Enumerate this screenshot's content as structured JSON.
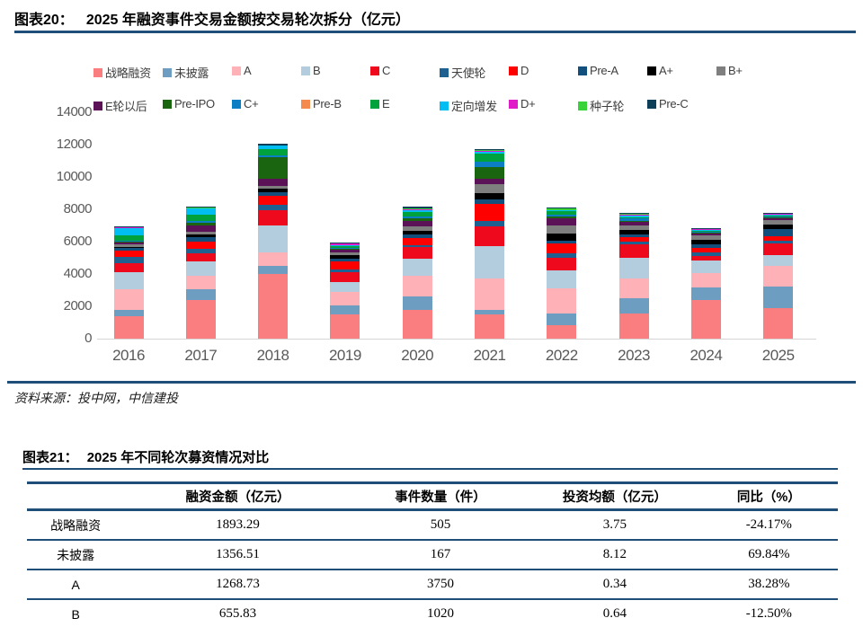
{
  "page": {
    "figure20_label": "图表20：",
    "figure20_title": "2025 年融资事件交易金额按交易轮次拆分（亿元）",
    "source": "资料来源：投中网，中信建投",
    "figure21_label": "图表21：",
    "figure21_title": "2025 年不同轮次募资情况对比"
  },
  "chart_data": {
    "type": "bar",
    "stacked": true,
    "title": "2025 年融资事件交易金额按交易轮次拆分（亿元）",
    "ylabel": "亿元",
    "categories": [
      "2016",
      "2017",
      "2018",
      "2019",
      "2020",
      "2021",
      "2022",
      "2023",
      "2024",
      "2025"
    ],
    "ylim": [
      0,
      14000
    ],
    "ytick_step": 2000,
    "grid": false,
    "legend_position": "top",
    "legend_rows": [
      10,
      9
    ],
    "axis_color": "#D6D6D6",
    "tick_color": "#595959",
    "series": [
      {
        "name": "战略融资",
        "color": "#FA7D80",
        "values": [
          1390,
          2400,
          4000,
          1520,
          1750,
          1520,
          835,
          1560,
          2400,
          1893
        ]
      },
      {
        "name": "未披露",
        "color": "#6D9DC0",
        "values": [
          390,
          630,
          480,
          540,
          835,
          280,
          720,
          945,
          740,
          1357
        ]
      },
      {
        "name": "A",
        "color": "#FFB1B8",
        "values": [
          1250,
          870,
          850,
          850,
          1300,
          1950,
          1550,
          1200,
          930,
          1269
        ]
      },
      {
        "name": "B",
        "color": "#B3CCDE",
        "values": [
          1060,
          870,
          1650,
          610,
          1050,
          2000,
          1120,
          1300,
          740,
          656
        ]
      },
      {
        "name": "C",
        "color": "#EE0A1C",
        "values": [
          575,
          500,
          960,
          600,
          740,
          1200,
          780,
          815,
          315,
          700
        ]
      },
      {
        "name": "天使轮",
        "color": "#1E6191",
        "values": [
          410,
          300,
          315,
          185,
          130,
          350,
          280,
          185,
          185,
          185
        ]
      },
      {
        "name": "D",
        "color": "#FF0000",
        "values": [
          350,
          460,
          575,
          480,
          430,
          1040,
          600,
          280,
          280,
          295
        ]
      },
      {
        "name": "Pre-A",
        "color": "#134F7D",
        "values": [
          170,
          240,
          220,
          150,
          220,
          280,
          150,
          150,
          220,
          400
        ]
      },
      {
        "name": "A+",
        "color": "#000000",
        "values": [
          90,
          185,
          240,
          220,
          200,
          400,
          480,
          280,
          280,
          280
        ]
      },
      {
        "name": "B+",
        "color": "#7F7F7F",
        "values": [
          170,
          185,
          150,
          160,
          280,
          520,
          500,
          280,
          280,
          280
        ]
      },
      {
        "name": "E轮以后",
        "color": "#5C1257",
        "values": [
          80,
          370,
          445,
          170,
          350,
          350,
          420,
          220,
          130,
          110
        ]
      },
      {
        "name": "Pre-IPO",
        "color": "#1A650F",
        "values": [
          60,
          185,
          1350,
          80,
          150,
          700,
          150,
          60,
          60,
          60
        ]
      },
      {
        "name": "C+",
        "color": "#0C7EC3",
        "values": [
          40,
          60,
          90,
          60,
          100,
          330,
          100,
          150,
          60,
          60
        ]
      },
      {
        "name": "Pre-B",
        "color": "#F58A50",
        "values": [
          20,
          20,
          20,
          0,
          30,
          30,
          0,
          0,
          0,
          0
        ]
      },
      {
        "name": "E",
        "color": "#00A23E",
        "values": [
          330,
          380,
          400,
          100,
          250,
          500,
          200,
          60,
          60,
          80
        ]
      },
      {
        "name": "定向增发",
        "color": "#00BEF2",
        "values": [
          470,
          400,
          185,
          60,
          150,
          90,
          60,
          120,
          60,
          60
        ]
      },
      {
        "name": "D+",
        "color": "#E01AC8",
        "values": [
          20,
          20,
          20,
          90,
          50,
          90,
          30,
          40,
          20,
          20
        ]
      },
      {
        "name": "种子轮",
        "color": "#37D337",
        "values": [
          20,
          30,
          20,
          30,
          50,
          30,
          60,
          60,
          40,
          40
        ]
      },
      {
        "name": "Pre-C",
        "color": "#0E3F58",
        "values": [
          50,
          60,
          90,
          50,
          100,
          40,
          60,
          60,
          60,
          60
        ]
      }
    ]
  },
  "table": {
    "headers": [
      "",
      "融资金额（亿元）",
      "事件数量（件）",
      "投资均额（亿元）",
      "同比（%）"
    ],
    "col_widths": [
      "12%",
      "28%",
      "22%",
      "21%",
      "17%"
    ],
    "rows": [
      [
        "战略融资",
        "1893.29",
        "505",
        "3.75",
        "-24.17%"
      ],
      [
        "未披露",
        "1356.51",
        "167",
        "8.12",
        "69.84%"
      ],
      [
        "A",
        "1268.73",
        "3750",
        "0.34",
        "38.28%"
      ],
      [
        "B",
        "655.83",
        "1020",
        "0.64",
        "-12.50%"
      ]
    ]
  }
}
